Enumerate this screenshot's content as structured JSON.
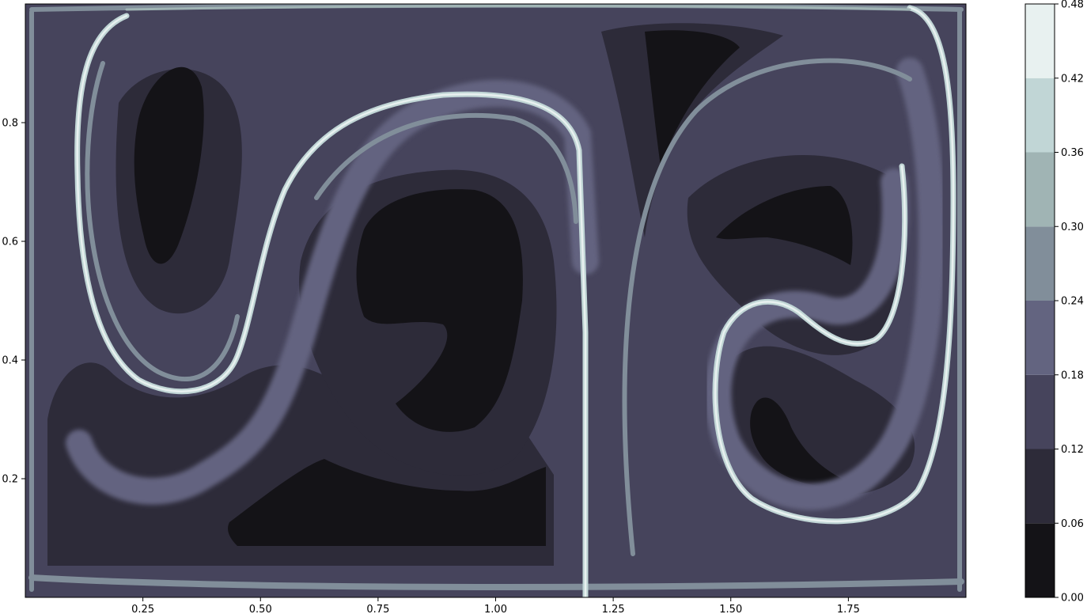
{
  "chart_data": {
    "type": "heatmap",
    "subtype": "filled contour",
    "title": "",
    "xlabel": "",
    "ylabel": "",
    "xlim": [
      0.0,
      2.0
    ],
    "ylim": [
      0.0,
      1.0
    ],
    "x_ticks": [
      0.25,
      0.5,
      0.75,
      1.0,
      1.25,
      1.5,
      1.75
    ],
    "x_tick_labels": [
      "0.25",
      "0.50",
      "0.75",
      "1.00",
      "1.25",
      "1.50",
      "1.75"
    ],
    "y_ticks": [
      0.2,
      0.4,
      0.6,
      0.8
    ],
    "y_tick_labels": [
      "0.2",
      "0.4",
      "0.6",
      "0.8"
    ],
    "colorbar": {
      "levels": [
        0.0,
        0.06,
        0.12,
        0.18,
        0.24,
        0.3,
        0.36,
        0.42,
        0.48
      ],
      "tick_labels": [
        "0.00",
        "0.06",
        "0.12",
        "0.18",
        "0.24",
        "0.30",
        "0.36",
        "0.42",
        "0.48"
      ],
      "colors": [
        "#141317",
        "#2d2b39",
        "#46445c",
        "#636480",
        "#818e9a",
        "#a0b4b4",
        "#c1d6d6",
        "#e8f1f0"
      ]
    },
    "grid": false,
    "legend": "none",
    "features": [
      {
        "name": "left-vortex-dark-core",
        "x": [
          0.25,
          0.35
        ],
        "y": [
          0.56,
          0.91
        ]
      },
      {
        "name": "central-dark-core",
        "x": [
          0.72,
          1.05
        ],
        "y": [
          0.28,
          0.69
        ]
      },
      {
        "name": "bottom-dark-region",
        "x": [
          0.43,
          0.92
        ],
        "y": [
          0.09,
          0.23
        ]
      },
      {
        "name": "top-right-dark-wedge",
        "x": [
          1.32,
          1.55
        ],
        "y": [
          0.72,
          0.95
        ]
      },
      {
        "name": "right-upper-dark-core",
        "x": [
          1.48,
          1.77
        ],
        "y": [
          0.55,
          0.7
        ]
      },
      {
        "name": "right-lower-dark-core",
        "x": [
          1.53,
          1.78
        ],
        "y": [
          0.18,
          0.33
        ]
      },
      {
        "name": "vertical-jet-bright-line",
        "x": [
          1.19,
          1.19
        ],
        "y": [
          0.0,
          0.85
        ]
      },
      {
        "name": "left-S-bright-filament",
        "x": [
          0.1,
          1.19
        ],
        "y": [
          0.34,
          0.85
        ]
      },
      {
        "name": "right-spiral-bright-filament",
        "x": [
          1.47,
          1.99
        ],
        "y": [
          0.13,
          0.99
        ]
      }
    ]
  }
}
